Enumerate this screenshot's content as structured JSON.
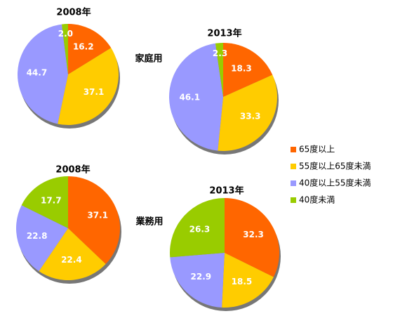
{
  "chart_data": [
    {
      "type": "pie",
      "title": "2008年",
      "categories": [
        "65度以上",
        "55度以上65度未満",
        "40度以上55度未満",
        "40度未満"
      ],
      "values": [
        16.2,
        37.1,
        44.7,
        2.0
      ],
      "value_labels": [
        "16.2",
        "37.1",
        "44.7",
        "2.0"
      ],
      "colors": [
        "#ff6600",
        "#ffcc00",
        "#9999ff",
        "#99cc00"
      ]
    },
    {
      "type": "pie",
      "title": "2013年",
      "categories": [
        "65度以上",
        "55度以上65度未満",
        "40度以上55度未満",
        "40度未満"
      ],
      "values": [
        18.3,
        33.3,
        46.1,
        2.3
      ],
      "colors": [
        "#ff6600",
        "#ffcc00",
        "#9999ff",
        "#99cc00"
      ]
    },
    {
      "type": "pie",
      "title": "2008年",
      "categories": [
        "65度以上",
        "55度以上65度未満",
        "40度以上55度未満",
        "40度未満"
      ],
      "values": [
        37.1,
        22.4,
        22.8,
        17.7
      ],
      "colors": [
        "#ff6600",
        "#ffcc00",
        "#9999ff",
        "#99cc00"
      ]
    },
    {
      "type": "pie",
      "title": "2013年",
      "categories": [
        "65度以上",
        "55度以上65度未満",
        "40度以上55度未満",
        "40度未満"
      ],
      "values": [
        32.3,
        18.5,
        22.9,
        26.3
      ],
      "colors": [
        "#ff6600",
        "#ffcc00",
        "#9999ff",
        "#99cc00"
      ]
    }
  ],
  "group_labels": [
    "家庭用",
    "業務用"
  ]
}
